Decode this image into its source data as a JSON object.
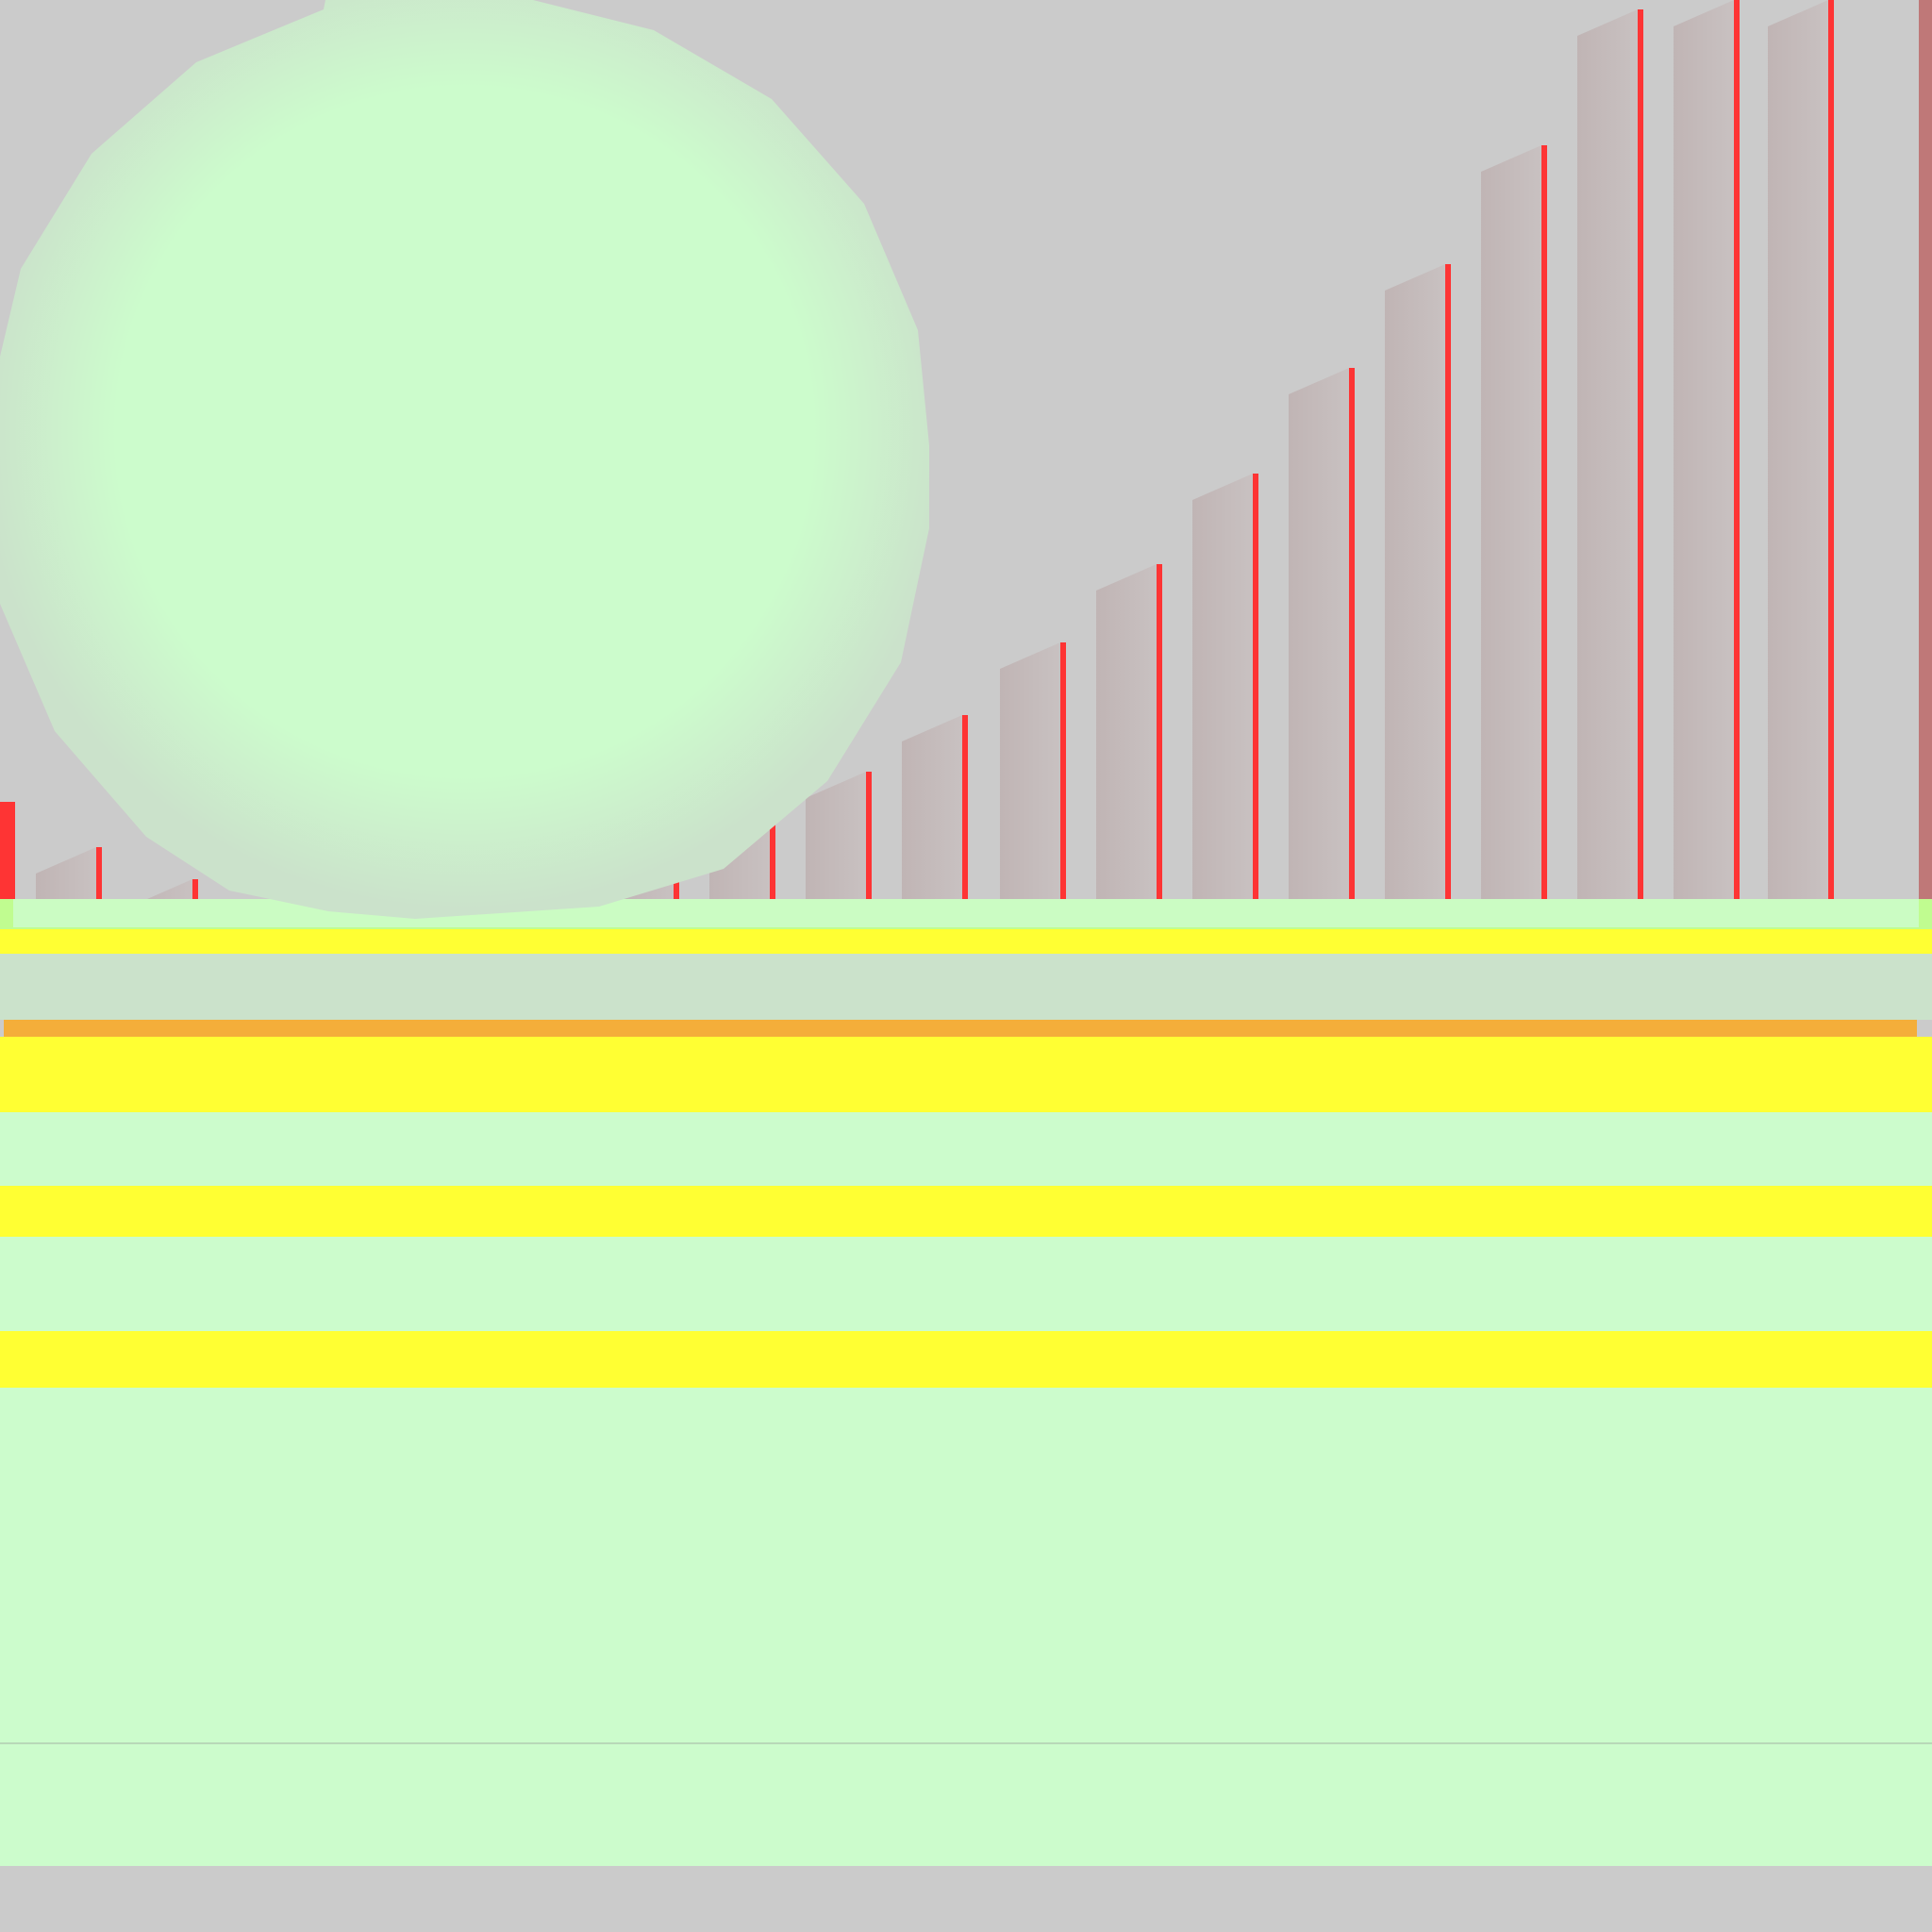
{
  "scene": {
    "description_free": true,
    "colors": {
      "background": "#cbcbcb",
      "pale_green": "#ccfccc",
      "lime_green": "#c0fc90",
      "yellow": "#ffff33",
      "orange": "#f4ae3a",
      "red": "#fe3434",
      "mauve_gray": "#c0b4b4",
      "sphere_rim": "#cbe2cb",
      "sphere_core": "#ccfccc",
      "rust_edge": "#bf7878"
    },
    "strips": [
      {
        "name": "strip-lime-top",
        "color_key": "lime_green"
      },
      {
        "name": "strip-yellow-1",
        "color_key": "yellow"
      },
      {
        "name": "strip-gray-band",
        "color_key": "sphere_rim"
      },
      {
        "name": "strip-orange",
        "color_key": "orange"
      },
      {
        "name": "strip-yellow-2",
        "color_key": "yellow"
      },
      {
        "name": "strip-green-1",
        "color_key": "pale_green"
      },
      {
        "name": "strip-yellow-3",
        "color_key": "yellow"
      },
      {
        "name": "strip-green-2",
        "color_key": "pale_green"
      },
      {
        "name": "strip-yellow-4",
        "color_key": "yellow"
      },
      {
        "name": "strip-green-3",
        "color_key": "pale_green"
      }
    ],
    "pillar_count": 20,
    "icons": [
      "sphere-shape",
      "pillar-row"
    ]
  }
}
